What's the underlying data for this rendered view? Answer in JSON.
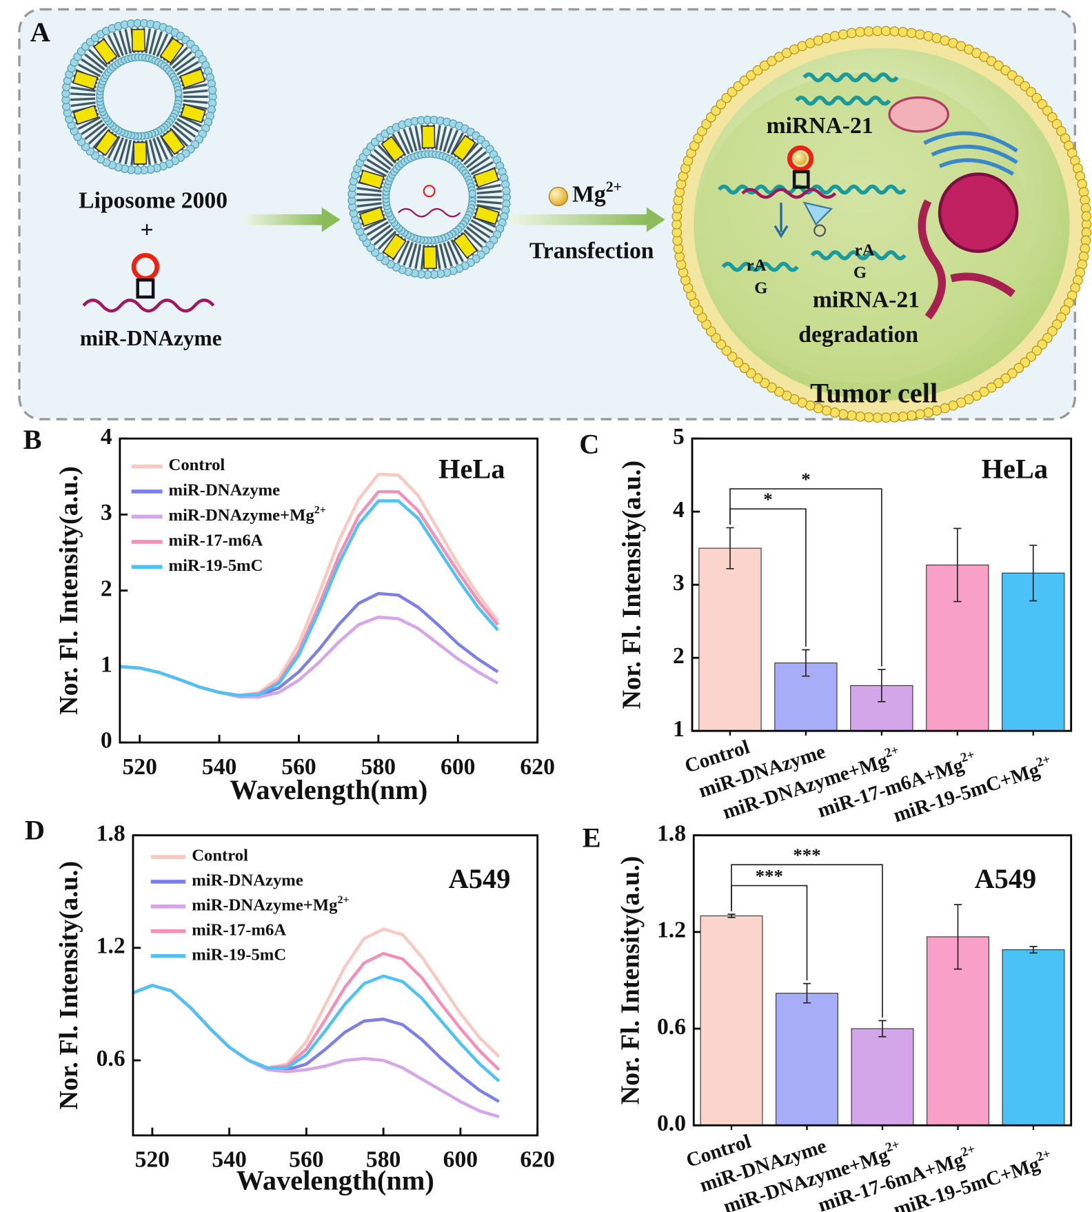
{
  "panel_labels": [
    "A",
    "B",
    "C",
    "D",
    "E"
  ],
  "schematic": {
    "liposome": "Liposome 2000",
    "plus": "+",
    "probe": "miR-DNAzyme",
    "ion": "Mg2+",
    "step": "Transfection",
    "target": "miRNA-21",
    "cleave_labels": [
      "rA",
      "G",
      "rA",
      "G"
    ],
    "result": [
      "miRNA-21",
      "degradation"
    ],
    "cell": "Tumor cell"
  },
  "chart_data": [
    {
      "type": "line",
      "title": "HeLa",
      "xlabel": "Wavelength(nm)",
      "ylabel": "Nor. Fl. Intensity(a.u.)",
      "legend": "upper left",
      "x": [
        515,
        520,
        525,
        530,
        535,
        540,
        545,
        550,
        555,
        560,
        565,
        570,
        575,
        580,
        585,
        590,
        595,
        600,
        605,
        610
      ],
      "series": [
        {
          "name": "Control",
          "color": "#f9c9c0",
          "values": [
            1.0,
            0.98,
            0.92,
            0.83,
            0.73,
            0.66,
            0.62,
            0.66,
            0.85,
            1.3,
            1.95,
            2.65,
            3.2,
            3.53,
            3.52,
            3.25,
            2.8,
            2.35,
            1.95,
            1.6
          ]
        },
        {
          "name": "miR-DNAzyme",
          "color": "#7b7fe8",
          "values": [
            1.0,
            0.98,
            0.92,
            0.83,
            0.73,
            0.66,
            0.61,
            0.62,
            0.72,
            0.93,
            1.22,
            1.55,
            1.83,
            1.96,
            1.94,
            1.78,
            1.55,
            1.3,
            1.1,
            0.93
          ]
        },
        {
          "name": "miR-DNAzyme+Mg2+",
          "color": "#d4a5e8",
          "values": [
            1.0,
            0.98,
            0.92,
            0.83,
            0.73,
            0.66,
            0.6,
            0.6,
            0.66,
            0.82,
            1.05,
            1.32,
            1.55,
            1.65,
            1.63,
            1.5,
            1.3,
            1.1,
            0.93,
            0.78
          ]
        },
        {
          "name": "miR-17-m6A",
          "color": "#f48fb8",
          "values": [
            1.0,
            0.98,
            0.92,
            0.83,
            0.73,
            0.66,
            0.62,
            0.64,
            0.8,
            1.2,
            1.8,
            2.45,
            2.98,
            3.3,
            3.3,
            3.05,
            2.65,
            2.25,
            1.87,
            1.55
          ]
        },
        {
          "name": "miR-19-5mC",
          "color": "#4fc1f2",
          "values": [
            1.0,
            0.98,
            0.92,
            0.83,
            0.73,
            0.66,
            0.62,
            0.63,
            0.78,
            1.15,
            1.72,
            2.35,
            2.87,
            3.18,
            3.18,
            2.95,
            2.55,
            2.15,
            1.78,
            1.48
          ]
        }
      ],
      "xlim": [
        515,
        620
      ],
      "xticks": [
        520,
        540,
        560,
        580,
        600,
        620
      ],
      "ylim": [
        0,
        4
      ],
      "yticks": [
        0,
        1,
        2,
        3,
        4
      ]
    },
    {
      "type": "bar",
      "title": "HeLa",
      "ylabel": "Nor. Fl. Intensity(a.u.)",
      "categories": [
        "Control",
        "miR-DNAzyme",
        "miR-DNAzyme+Mg2+",
        "miR-17-m6A+Mg2+",
        "miR-19-5mC+Mg2+"
      ],
      "values": [
        3.5,
        1.93,
        1.62,
        3.27,
        3.16
      ],
      "errors": [
        0.28,
        0.18,
        0.22,
        0.5,
        0.38
      ],
      "colors": [
        "#fbd5cc",
        "#a8adf7",
        "#d3a6ea",
        "#f9a0c8",
        "#4ac2f7"
      ],
      "annotations": [
        "*",
        "*"
      ],
      "ylim": [
        1,
        5
      ],
      "yticks": [
        1,
        2,
        3,
        4,
        5
      ]
    },
    {
      "type": "line",
      "title": "A549",
      "xlabel": "Wavelength(nm)",
      "ylabel": "Nor. Fl. Intensity(a.u.)",
      "legend": "upper left",
      "x": [
        515,
        520,
        525,
        530,
        535,
        540,
        545,
        550,
        555,
        560,
        565,
        570,
        575,
        580,
        585,
        590,
        595,
        600,
        605,
        610
      ],
      "series": [
        {
          "name": "Control",
          "color": "#f9c9c0",
          "values": [
            0.96,
            1.0,
            0.97,
            0.88,
            0.77,
            0.67,
            0.6,
            0.56,
            0.58,
            0.7,
            0.9,
            1.1,
            1.25,
            1.3,
            1.27,
            1.15,
            1.0,
            0.85,
            0.72,
            0.62
          ]
        },
        {
          "name": "miR-DNAzyme",
          "color": "#7b7fe8",
          "values": [
            0.96,
            1.0,
            0.97,
            0.88,
            0.77,
            0.67,
            0.6,
            0.55,
            0.55,
            0.58,
            0.66,
            0.75,
            0.81,
            0.82,
            0.79,
            0.71,
            0.61,
            0.52,
            0.44,
            0.38
          ]
        },
        {
          "name": "miR-DNAzyme+Mg2+",
          "color": "#d4a5e8",
          "values": [
            0.96,
            1.0,
            0.97,
            0.88,
            0.77,
            0.67,
            0.6,
            0.55,
            0.54,
            0.55,
            0.57,
            0.6,
            0.61,
            0.6,
            0.56,
            0.5,
            0.44,
            0.38,
            0.33,
            0.3
          ]
        },
        {
          "name": "miR-17-m6A",
          "color": "#f48fb8",
          "values": [
            0.96,
            1.0,
            0.97,
            0.88,
            0.77,
            0.67,
            0.6,
            0.56,
            0.57,
            0.66,
            0.82,
            0.99,
            1.12,
            1.17,
            1.14,
            1.04,
            0.9,
            0.77,
            0.65,
            0.55
          ]
        },
        {
          "name": "miR-19-5mC",
          "color": "#4fc1f2",
          "values": [
            0.96,
            1.0,
            0.97,
            0.88,
            0.77,
            0.67,
            0.6,
            0.56,
            0.56,
            0.63,
            0.76,
            0.9,
            1.01,
            1.05,
            1.02,
            0.93,
            0.81,
            0.69,
            0.58,
            0.49
          ]
        }
      ],
      "xlim": [
        515,
        620
      ],
      "xticks": [
        520,
        540,
        560,
        580,
        600,
        620
      ],
      "ylim": [
        0.2,
        1.8
      ],
      "yticks": [
        0.6,
        1.2,
        1.8
      ]
    },
    {
      "type": "bar",
      "title": "A549",
      "ylabel": "Nor. Fl. Intensity(a.u.)",
      "categories": [
        "Control",
        "miR-DNAzyme",
        "miR-DNAzyme+Mg2+",
        "miR-17-6mA+Mg2+",
        "miR-19-5mC+Mg2+"
      ],
      "values": [
        1.3,
        0.82,
        0.6,
        1.17,
        1.09
      ],
      "errors": [
        0.01,
        0.06,
        0.05,
        0.2,
        0.02
      ],
      "colors": [
        "#fbd5cc",
        "#a8adf7",
        "#d3a6ea",
        "#f9a0c8",
        "#4ac2f7"
      ],
      "annotations": [
        "***",
        "***"
      ],
      "ylim": [
        0,
        1.8
      ],
      "yticks": [
        {
          "value": 0,
          "label": "0.0"
        },
        0.6,
        1.2,
        1.8
      ]
    }
  ]
}
